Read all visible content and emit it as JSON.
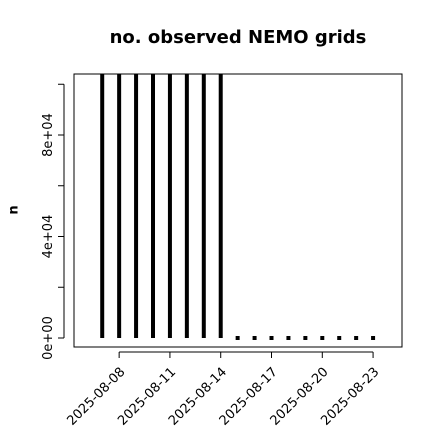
{
  "chart_data": {
    "type": "bar_h_lines",
    "title": "no. observed NEMO grids",
    "y_label": "n",
    "x": [
      "2025-08-07",
      "2025-08-08",
      "2025-08-09",
      "2025-08-10",
      "2025-08-11",
      "2025-08-12",
      "2025-08-13",
      "2025-08-14",
      "2025-08-15",
      "2025-08-16",
      "2025-08-17",
      "2025-08-18",
      "2025-08-19",
      "2025-08-20",
      "2025-08-21",
      "2025-08-22",
      "2025-08-23"
    ],
    "values": [
      104000,
      104000,
      104000,
      104000,
      104000,
      104000,
      104000,
      104000,
      0,
      0,
      0,
      0,
      0,
      0,
      0,
      0,
      0
    ],
    "color": "#000000",
    "xlim": [
      "2025-08-05T08:00",
      "2025-08-24T17:00"
    ],
    "xticks": [
      "2025-08-08",
      "2025-08-11",
      "2025-08-14",
      "2025-08-17",
      "2025-08-20",
      "2025-08-23"
    ],
    "ylim": [
      -3547,
      104040
    ],
    "yticks": [
      {
        "value": 0,
        "label": "0e+00"
      },
      {
        "value": 20000,
        "label": null
      },
      {
        "value": 40000,
        "label": "4e+04"
      },
      {
        "value": 60000,
        "label": null
      },
      {
        "value": 80000,
        "label": "8e+04"
      },
      {
        "value": 100000,
        "label": null
      }
    ]
  }
}
